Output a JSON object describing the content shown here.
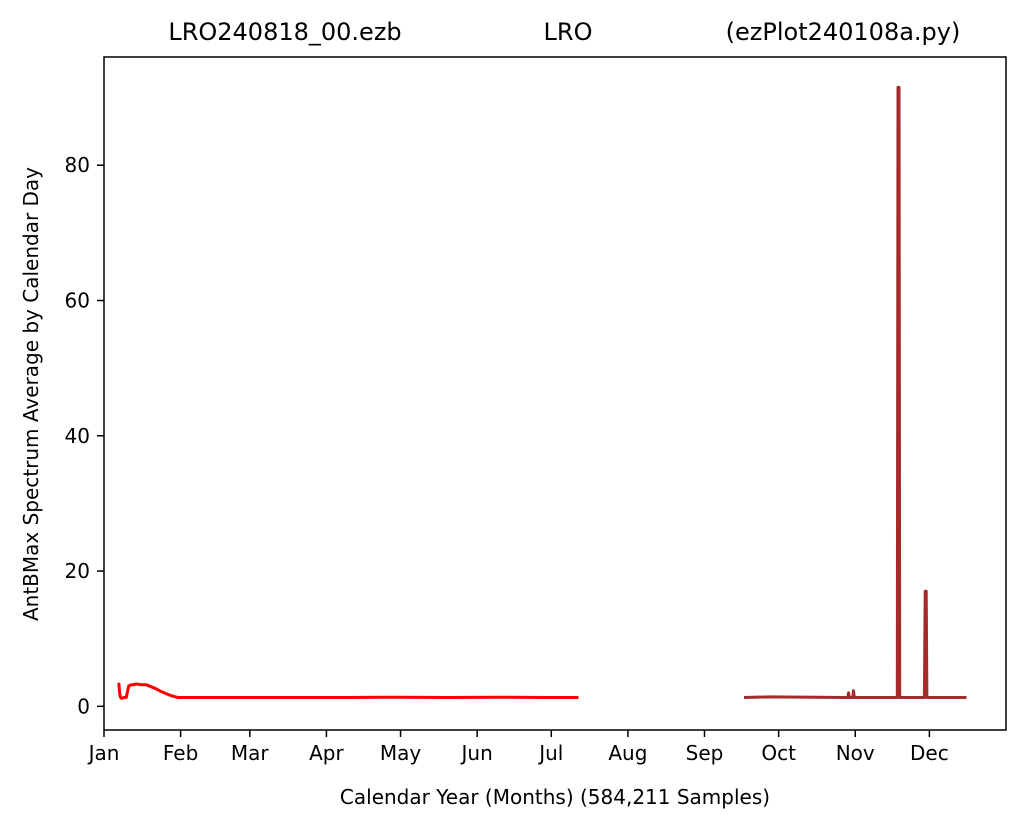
{
  "chart_data": {
    "type": "line",
    "title_parts": [
      "LRO240818_00.ezb",
      "LRO",
      "(ezPlot240108a.py)"
    ],
    "xlabel": "Calendar Year (Months) (584,211 Samples)",
    "ylabel": "AntBMax Spectrum Average by Calendar Day",
    "x_unit": "day of year",
    "xlim": [
      1,
      366
    ],
    "ylim": [
      -3.5,
      96
    ],
    "x_tick_labels": [
      "Jan",
      "Feb",
      "Mar",
      "Apr",
      "May",
      "Jun",
      "Jul",
      "Aug",
      "Sep",
      "Oct",
      "Nov",
      "Dec"
    ],
    "x_ticks": [
      1,
      32,
      60,
      91,
      121,
      152,
      182,
      213,
      244,
      274,
      305,
      335
    ],
    "y_ticks": [
      0,
      20,
      40,
      60,
      80
    ],
    "grid": false,
    "series": [
      {
        "color": "#ff0000",
        "x": [
          7,
          7.3,
          7.6,
          8,
          8.5,
          9,
          10,
          10.5,
          11,
          12,
          13,
          14,
          16,
          18,
          20,
          22,
          24,
          26,
          28,
          30,
          31,
          32,
          40,
          60,
          80,
          100,
          120,
          140,
          160,
          180,
          192,
          193
        ],
        "y": [
          3.5,
          2.0,
          1.4,
          1.2,
          1.2,
          1.3,
          1.3,
          2.2,
          3.0,
          3.2,
          3.2,
          3.3,
          3.2,
          3.2,
          2.9,
          2.6,
          2.2,
          1.9,
          1.6,
          1.4,
          1.3,
          1.3,
          1.3,
          1.3,
          1.3,
          1.3,
          1.35,
          1.3,
          1.35,
          1.3,
          1.3,
          1.3
        ]
      },
      {
        "color": "#a52a2a",
        "x": [
          260,
          270,
          290,
          300,
          302,
          302.3,
          302.6,
          304,
          304.3,
          304.6,
          306,
          310,
          320,
          322,
          322.3,
          322.7,
          323,
          325,
          333,
          333.3,
          333.7,
          334,
          336,
          350
        ],
        "y": [
          1.3,
          1.4,
          1.35,
          1.3,
          1.3,
          2.0,
          1.3,
          1.3,
          2.3,
          1.3,
          1.3,
          1.3,
          1.3,
          1.3,
          91.5,
          91.5,
          1.3,
          1.3,
          1.3,
          17.0,
          17.0,
          1.3,
          1.3,
          1.3
        ]
      }
    ]
  }
}
